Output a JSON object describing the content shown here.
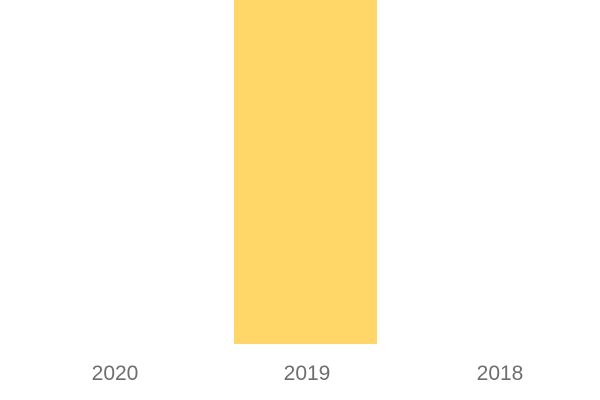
{
  "chart_data": {
    "type": "bar",
    "orientation": "vertical",
    "title": "",
    "xlabel": "",
    "ylabel": "",
    "categories": [
      "2020",
      "2019",
      "2018"
    ],
    "values": [
      0,
      1,
      0
    ],
    "value_note": "No y-axis, gridlines, or value labels are shown. Only the 2019 category has a visible bar, and it overflows past the top edge of the image (clipped).",
    "grid": false,
    "legend": false,
    "bar_color": "#FFD667",
    "axis_label_color": "#6E6E6E",
    "background_color": "#FFFFFF"
  }
}
